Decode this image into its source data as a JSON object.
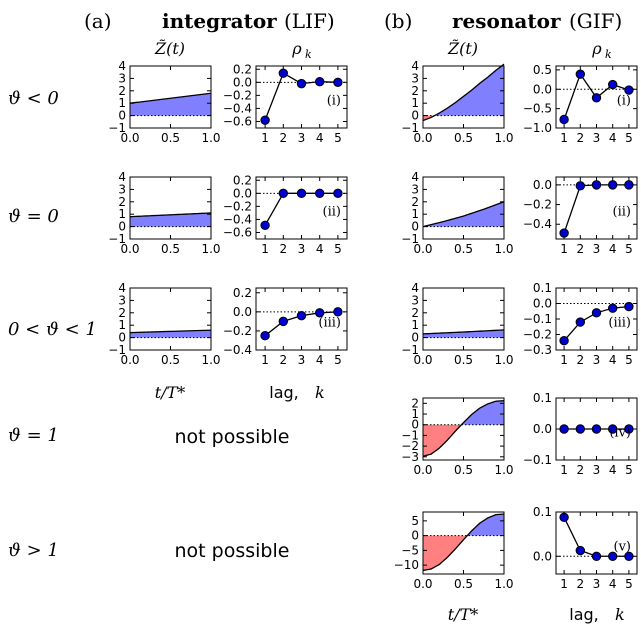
{
  "headers": {
    "a": {
      "label": "(a)",
      "bold": "integrator",
      "rest": "(LIF)"
    },
    "b": {
      "label": "(b)",
      "bold": "resonator",
      "rest": "(GIF)"
    }
  },
  "column_titles": {
    "z": "Z̃(t)",
    "rho": "ρ"
  },
  "rho_subscript": "k",
  "rows": [
    {
      "label": "ϑ < 0"
    },
    {
      "label": "ϑ = 0"
    },
    {
      "label": "0 < ϑ < 1"
    },
    {
      "label": "ϑ = 1"
    },
    {
      "label": "ϑ > 1"
    }
  ],
  "not_possible_text": "not possible",
  "xlabel_z": "t/T*",
  "xlabel_rho_prefix": "lag, ",
  "xlabel_rho_var": "k",
  "colors": {
    "positive_fill": "#8080ff",
    "negative_fill": "#ff8080",
    "marker": "#0000cc"
  },
  "chart_data": [
    {
      "id": "a1-z",
      "type": "area",
      "xlim": [
        0,
        1
      ],
      "ylim": [
        -1,
        4
      ],
      "yticks": [
        -1,
        0,
        1,
        2,
        3,
        4
      ],
      "xticks": [
        0.0,
        0.5,
        1.0
      ],
      "xticklabels": [
        "0.0",
        "0.5",
        "1.0"
      ],
      "x": [
        0,
        0.25,
        0.5,
        0.75,
        1.0
      ],
      "y": [
        1.0,
        1.2,
        1.4,
        1.6,
        1.8
      ]
    },
    {
      "id": "a1-rho",
      "type": "line",
      "ylim": [
        -0.7,
        0.25
      ],
      "yticks": [
        -0.6,
        -0.4,
        -0.2,
        0.0,
        0.2
      ],
      "yticklabels": [
        "−0.6",
        "−0.4",
        "−0.2",
        "0.0",
        "0.2"
      ],
      "x": [
        1,
        2,
        3,
        4,
        5
      ],
      "y": [
        -0.58,
        0.14,
        -0.02,
        0.01,
        0.0
      ],
      "annotation": "(i)"
    },
    {
      "id": "b1-z",
      "type": "area",
      "xlim": [
        0,
        1
      ],
      "ylim": [
        -1,
        4
      ],
      "yticks": [
        -1,
        0,
        1,
        2,
        3,
        4
      ],
      "xticks": [
        0.0,
        0.5,
        1.0
      ],
      "xticklabels": [
        "0.0",
        "0.5",
        "1.0"
      ],
      "x": [
        0,
        0.1,
        0.2,
        0.3,
        0.4,
        0.5,
        0.6,
        0.7,
        0.8,
        0.9,
        1.0
      ],
      "y": [
        -0.4,
        -0.15,
        0.2,
        0.6,
        1.05,
        1.55,
        2.05,
        2.6,
        3.1,
        3.65,
        4.15
      ]
    },
    {
      "id": "b1-rho",
      "type": "line",
      "ylim": [
        -1.0,
        0.6
      ],
      "yticks": [
        -1.0,
        -0.5,
        0.0,
        0.5
      ],
      "yticklabels": [
        "−1.0",
        "−0.5",
        "0.0",
        "0.5"
      ],
      "x": [
        1,
        2,
        3,
        4,
        5
      ],
      "y": [
        -0.78,
        0.39,
        -0.22,
        0.12,
        -0.02
      ],
      "annotation": "(i)"
    },
    {
      "id": "a2-z",
      "type": "area",
      "xlim": [
        0,
        1
      ],
      "ylim": [
        -1,
        4
      ],
      "yticks": [
        -1,
        0,
        1,
        2,
        3,
        4
      ],
      "xticks": [
        0.0,
        0.5,
        1.0
      ],
      "xticklabels": [
        "0.0",
        "0.5",
        "1.0"
      ],
      "x": [
        0,
        0.5,
        1.0
      ],
      "y": [
        0.8,
        0.95,
        1.1
      ]
    },
    {
      "id": "a2-rho",
      "type": "line",
      "ylim": [
        -0.7,
        0.25
      ],
      "yticks": [
        -0.6,
        -0.4,
        -0.2,
        0.0,
        0.2
      ],
      "yticklabels": [
        "−0.6",
        "−0.4",
        "−0.2",
        "0.0",
        "0.2"
      ],
      "x": [
        1,
        2,
        3,
        4,
        5
      ],
      "y": [
        -0.49,
        0.0,
        0.0,
        0.0,
        0.0
      ],
      "annotation": "(ii)"
    },
    {
      "id": "b2-z",
      "type": "area",
      "xlim": [
        0,
        1
      ],
      "ylim": [
        -1,
        4
      ],
      "yticks": [
        -1,
        0,
        1,
        2,
        3,
        4
      ],
      "xticks": [
        0.0,
        0.5,
        1.0
      ],
      "xticklabels": [
        "0.0",
        "0.5",
        "1.0"
      ],
      "x": [
        0,
        0.25,
        0.5,
        0.75,
        1.0
      ],
      "y": [
        0.0,
        0.4,
        0.85,
        1.4,
        2.0
      ]
    },
    {
      "id": "b2-rho",
      "type": "line",
      "ylim": [
        -0.55,
        0.08
      ],
      "yticks": [
        -0.4,
        -0.2,
        0.0
      ],
      "yticklabels": [
        "−0.4",
        "−0.2",
        "0.0"
      ],
      "x": [
        1,
        2,
        3,
        4,
        5
      ],
      "y": [
        -0.49,
        -0.01,
        0.0,
        0.0,
        0.0
      ],
      "annotation": "(ii)"
    },
    {
      "id": "a3-z",
      "type": "area",
      "xlim": [
        0,
        1
      ],
      "ylim": [
        -1,
        4
      ],
      "yticks": [
        -1,
        0,
        1,
        2,
        3,
        4
      ],
      "xticks": [
        0.0,
        0.5,
        1.0
      ],
      "xticklabels": [
        "0.0",
        "0.5",
        "1.0"
      ],
      "x": [
        0,
        0.5,
        1.0
      ],
      "y": [
        0.4,
        0.5,
        0.6
      ]
    },
    {
      "id": "a3-rho",
      "type": "line",
      "ylim": [
        -0.4,
        0.25
      ],
      "yticks": [
        -0.4,
        -0.2,
        0.0,
        0.2
      ],
      "yticklabels": [
        "−0.4",
        "−0.2",
        "0.0",
        "0.2"
      ],
      "x": [
        1,
        2,
        3,
        4,
        5
      ],
      "y": [
        -0.25,
        -0.1,
        -0.04,
        -0.01,
        0.0
      ],
      "annotation": "(iii)"
    },
    {
      "id": "b3-z",
      "type": "area",
      "xlim": [
        0,
        1
      ],
      "ylim": [
        -1,
        4
      ],
      "yticks": [
        -1,
        0,
        1,
        2,
        3,
        4
      ],
      "xticks": [
        0.0,
        0.5,
        1.0
      ],
      "xticklabels": [
        "0.0",
        "0.5",
        "1.0"
      ],
      "x": [
        0,
        0.5,
        1.0
      ],
      "y": [
        0.3,
        0.45,
        0.62
      ]
    },
    {
      "id": "b3-rho",
      "type": "line",
      "ylim": [
        -0.3,
        0.1
      ],
      "yticks": [
        -0.3,
        -0.2,
        -0.1,
        0.0,
        0.1
      ],
      "yticklabels": [
        "−0.3",
        "−0.2",
        "−0.1",
        "0.0",
        "0.1"
      ],
      "x": [
        1,
        2,
        3,
        4,
        5
      ],
      "y": [
        -0.24,
        -0.12,
        -0.06,
        -0.03,
        -0.02
      ],
      "annotation": "(iii)"
    },
    {
      "id": "b4-z",
      "type": "area",
      "xlim": [
        0,
        1
      ],
      "ylim": [
        -3.3,
        2.5
      ],
      "yticks": [
        -3,
        -2,
        -1,
        0,
        1,
        2
      ],
      "xticks": [
        0.0,
        0.5,
        1.0
      ],
      "xticklabels": [
        "0.0",
        "0.5",
        "1.0"
      ],
      "x": [
        0,
        0.1,
        0.2,
        0.3,
        0.4,
        0.5,
        0.6,
        0.7,
        0.8,
        0.9,
        1.0
      ],
      "y": [
        -2.95,
        -2.75,
        -2.2,
        -1.45,
        -0.6,
        0.2,
        0.95,
        1.55,
        1.95,
        2.2,
        2.25
      ]
    },
    {
      "id": "b4-rho",
      "type": "line",
      "ylim": [
        -0.1,
        0.1
      ],
      "yticks": [
        -0.1,
        0.0,
        0.1
      ],
      "yticklabels": [
        "−0.1",
        "0.0",
        "0.1"
      ],
      "x": [
        1,
        2,
        3,
        4,
        5
      ],
      "y": [
        0.0,
        0.0,
        0.0,
        0.0,
        0.0
      ],
      "annotation": "(iv)"
    },
    {
      "id": "b5-z",
      "type": "area",
      "xlim": [
        0,
        1
      ],
      "ylim": [
        -13,
        8
      ],
      "yticks": [
        -10,
        -5,
        0,
        5
      ],
      "xticks": [
        0.0,
        0.5,
        1.0
      ],
      "xticklabels": [
        "0.0",
        "0.5",
        "1.0"
      ],
      "x": [
        0,
        0.1,
        0.2,
        0.3,
        0.4,
        0.5,
        0.6,
        0.7,
        0.8,
        0.9,
        1.0
      ],
      "y": [
        -11.8,
        -11.3,
        -9.8,
        -7.4,
        -4.5,
        -1.4,
        1.6,
        4.2,
        6.0,
        7.1,
        7.3
      ]
    },
    {
      "id": "b5-rho",
      "type": "line",
      "ylim": [
        -0.04,
        0.1
      ],
      "yticks": [
        0.0,
        0.1
      ],
      "yticklabels": [
        "0.0",
        "0.1"
      ],
      "x": [
        1,
        2,
        3,
        4,
        5
      ],
      "y": [
        0.088,
        0.013,
        0.0,
        0.0,
        0.0
      ],
      "annotation": "(v)"
    }
  ]
}
